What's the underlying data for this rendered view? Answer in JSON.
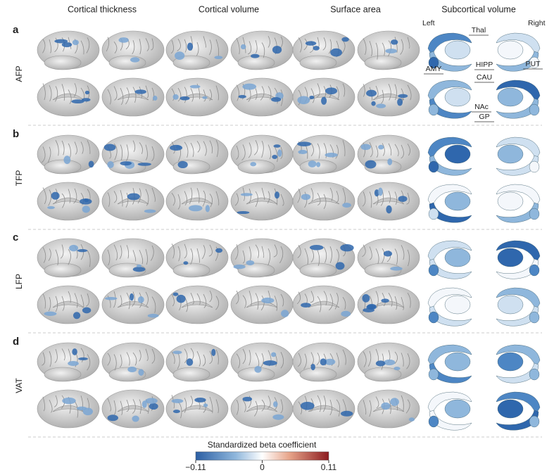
{
  "headers": [
    "Cortical thickness",
    "Cortical volume",
    "Surface area",
    "Subcortical volume"
  ],
  "rows": [
    {
      "letter": "a",
      "label": "AFP"
    },
    {
      "letter": "b",
      "label": "TFP"
    },
    {
      "letter": "c",
      "label": "LFP"
    },
    {
      "letter": "d",
      "label": "VAT"
    }
  ],
  "subcortical": {
    "left": "Left",
    "right": "Right",
    "labels": [
      "Thal",
      "PUT",
      "HIPP",
      "AMY",
      "CAU",
      "NAc",
      "GP"
    ]
  },
  "colorbar": {
    "title": "Standardized beta coefficient",
    "lim": [
      -0.11,
      0.11
    ],
    "ticks": [
      {
        "value": -0.11,
        "label": "−0.11"
      },
      0,
      0.11
    ]
  }
}
